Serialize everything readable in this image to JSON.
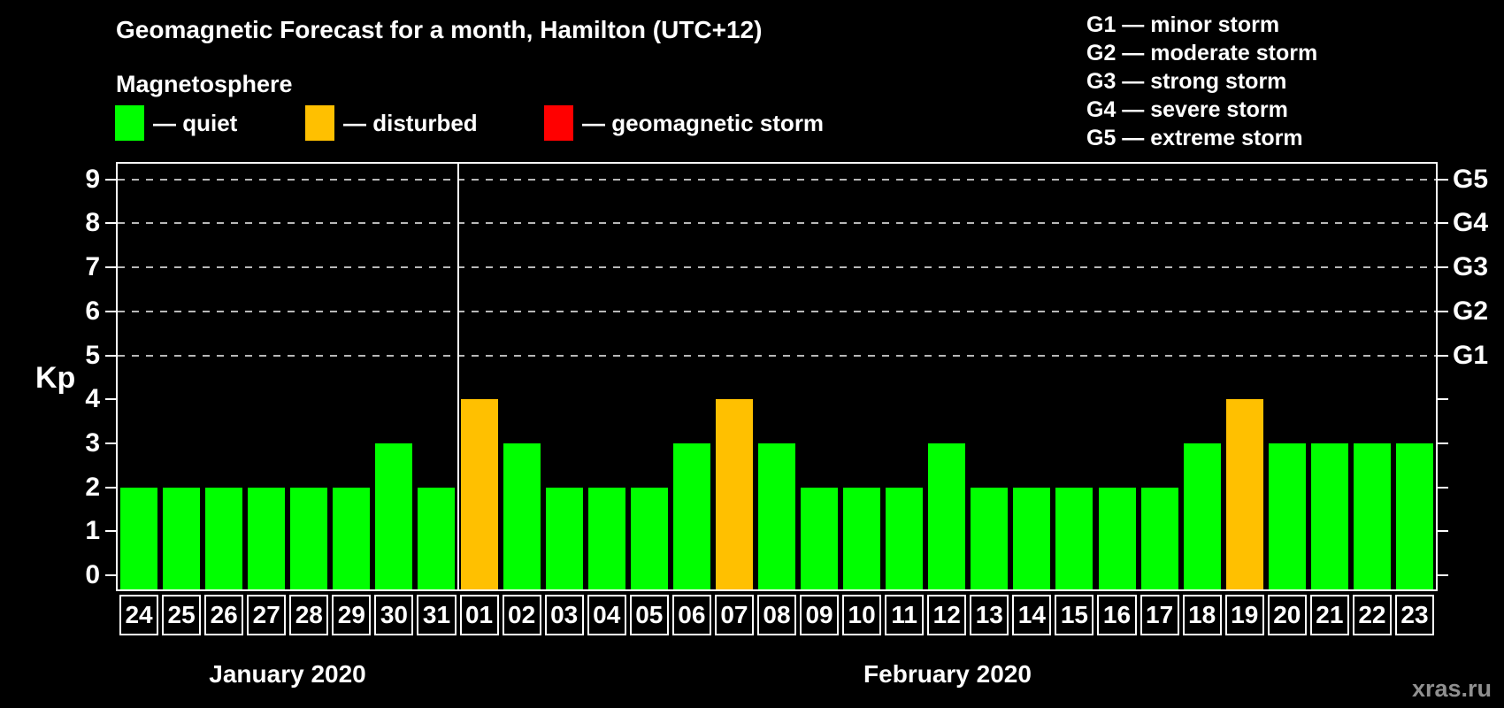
{
  "header": {
    "title": "Geomagnetic Forecast for a month, Hamilton (UTC+12)",
    "subtitle": "Magnetosphere"
  },
  "legend": {
    "items": [
      {
        "key": "quiet",
        "label": "— quiet",
        "color": "#00ff00"
      },
      {
        "key": "disturbed",
        "label": "— disturbed",
        "color": "#ffc000"
      },
      {
        "key": "storm",
        "label": "— geomagnetic storm",
        "color": "#ff0000"
      }
    ]
  },
  "g_legend": {
    "items": [
      "G1 — minor storm",
      "G2 — moderate storm",
      "G3 — strong storm",
      "G4 — severe storm",
      "G5 — extreme storm"
    ]
  },
  "axes": {
    "y_label": "Kp",
    "y_ticks": [
      0,
      1,
      2,
      3,
      4,
      5,
      6,
      7,
      8,
      9
    ],
    "gridline_levels": [
      5,
      6,
      7,
      8,
      9
    ],
    "right_labels": [
      {
        "label": "G1",
        "level": 5
      },
      {
        "label": "G2",
        "level": 6
      },
      {
        "label": "G3",
        "level": 7
      },
      {
        "label": "G4",
        "level": 8
      },
      {
        "label": "G5",
        "level": 9
      }
    ]
  },
  "months": [
    {
      "label": "January 2020"
    },
    {
      "label": "February 2020"
    }
  ],
  "watermark": "xras.ru",
  "chart_data": {
    "type": "bar",
    "title": "Geomagnetic Forecast for a month, Hamilton (UTC+12)",
    "ylabel": "Kp",
    "ylim": [
      0,
      9
    ],
    "grid": "dashed horizontal at Kp 5-9",
    "legend_position": "top-left statuses, top-right G-scale",
    "points": [
      {
        "month": "January 2020",
        "day": "24",
        "kp": 2,
        "status": "quiet"
      },
      {
        "month": "January 2020",
        "day": "25",
        "kp": 2,
        "status": "quiet"
      },
      {
        "month": "January 2020",
        "day": "26",
        "kp": 2,
        "status": "quiet"
      },
      {
        "month": "January 2020",
        "day": "27",
        "kp": 2,
        "status": "quiet"
      },
      {
        "month": "January 2020",
        "day": "28",
        "kp": 2,
        "status": "quiet"
      },
      {
        "month": "January 2020",
        "day": "29",
        "kp": 2,
        "status": "quiet"
      },
      {
        "month": "January 2020",
        "day": "30",
        "kp": 3,
        "status": "quiet"
      },
      {
        "month": "January 2020",
        "day": "31",
        "kp": 2,
        "status": "quiet"
      },
      {
        "month": "February 2020",
        "day": "01",
        "kp": 4,
        "status": "disturbed"
      },
      {
        "month": "February 2020",
        "day": "02",
        "kp": 3,
        "status": "quiet"
      },
      {
        "month": "February 2020",
        "day": "03",
        "kp": 2,
        "status": "quiet"
      },
      {
        "month": "February 2020",
        "day": "04",
        "kp": 2,
        "status": "quiet"
      },
      {
        "month": "February 2020",
        "day": "05",
        "kp": 2,
        "status": "quiet"
      },
      {
        "month": "February 2020",
        "day": "06",
        "kp": 3,
        "status": "quiet"
      },
      {
        "month": "February 2020",
        "day": "07",
        "kp": 4,
        "status": "disturbed"
      },
      {
        "month": "February 2020",
        "day": "08",
        "kp": 3,
        "status": "quiet"
      },
      {
        "month": "February 2020",
        "day": "09",
        "kp": 2,
        "status": "quiet"
      },
      {
        "month": "February 2020",
        "day": "10",
        "kp": 2,
        "status": "quiet"
      },
      {
        "month": "February 2020",
        "day": "11",
        "kp": 2,
        "status": "quiet"
      },
      {
        "month": "February 2020",
        "day": "12",
        "kp": 3,
        "status": "quiet"
      },
      {
        "month": "February 2020",
        "day": "13",
        "kp": 2,
        "status": "quiet"
      },
      {
        "month": "February 2020",
        "day": "14",
        "kp": 2,
        "status": "quiet"
      },
      {
        "month": "February 2020",
        "day": "15",
        "kp": 2,
        "status": "quiet"
      },
      {
        "month": "February 2020",
        "day": "16",
        "kp": 2,
        "status": "quiet"
      },
      {
        "month": "February 2020",
        "day": "17",
        "kp": 2,
        "status": "quiet"
      },
      {
        "month": "February 2020",
        "day": "18",
        "kp": 3,
        "status": "quiet"
      },
      {
        "month": "February 2020",
        "day": "19",
        "kp": 4,
        "status": "disturbed"
      },
      {
        "month": "February 2020",
        "day": "20",
        "kp": 3,
        "status": "quiet"
      },
      {
        "month": "February 2020",
        "day": "21",
        "kp": 3,
        "status": "quiet"
      },
      {
        "month": "February 2020",
        "day": "22",
        "kp": 3,
        "status": "quiet"
      },
      {
        "month": "February 2020",
        "day": "23",
        "kp": 3,
        "status": "quiet"
      }
    ]
  }
}
